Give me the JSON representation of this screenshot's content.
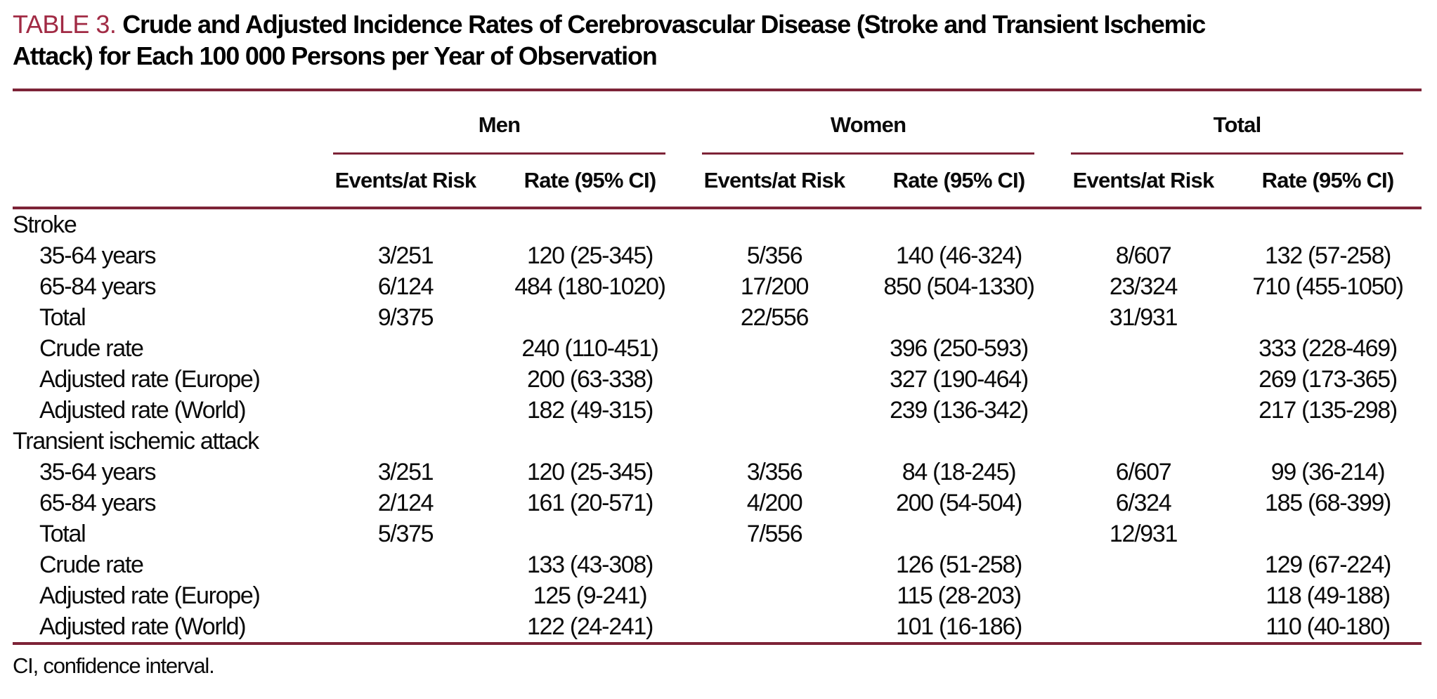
{
  "colors": {
    "accent_rule_color": "#7D2337",
    "table_label_color": "#A12A44"
  },
  "heading": {
    "table_label": "TABLE 3.",
    "title_line1": "Crude and Adjusted Incidence Rates of Cerebrovascular Disease (Stroke and Transient Ischemic",
    "title_line2": "Attack) for Each 100 000 Persons per Year of Observation"
  },
  "table": {
    "groups": [
      {
        "label": "Men"
      },
      {
        "label": "Women"
      },
      {
        "label": "Total"
      }
    ],
    "sub_headers": [
      "Events/at Risk",
      "Rate (95% CI)",
      "Events/at Risk",
      "Rate (95% CI)",
      "Events/at Risk",
      "Rate (95% CI)"
    ],
    "rows": [
      {
        "label": "Stroke",
        "type": "section",
        "cells": [
          "",
          "",
          "",
          "",
          "",
          ""
        ]
      },
      {
        "label": "35-64 years",
        "type": "data",
        "cells": [
          "3/251",
          "120 (25-345)",
          "5/356",
          "140 (46-324)",
          "8/607",
          "132 (57-258)"
        ]
      },
      {
        "label": "65-84 years",
        "type": "data",
        "cells": [
          "6/124",
          "484 (180-1020)",
          "17/200",
          "850 (504-1330)",
          "23/324",
          "710 (455-1050)"
        ]
      },
      {
        "label": "Total",
        "type": "data",
        "cells": [
          "9/375",
          "",
          "22/556",
          "",
          "31/931",
          ""
        ]
      },
      {
        "label": "Crude rate",
        "type": "data",
        "cells": [
          "",
          "240 (110-451)",
          "",
          "396 (250-593)",
          "",
          "333 (228-469)"
        ]
      },
      {
        "label": "Adjusted rate (Europe)",
        "type": "data",
        "cells": [
          "",
          "200 (63-338)",
          "",
          "327 (190-464)",
          "",
          "269 (173-365)"
        ]
      },
      {
        "label": "Adjusted rate (World)",
        "type": "data",
        "cells": [
          "",
          "182 (49-315)",
          "",
          "239 (136-342)",
          "",
          "217 (135-298)"
        ]
      },
      {
        "label": "Transient ischemic attack",
        "type": "section",
        "cells": [
          "",
          "",
          "",
          "",
          "",
          ""
        ]
      },
      {
        "label": "35-64 years",
        "type": "data",
        "cells": [
          "3/251",
          "120 (25-345)",
          "3/356",
          "84 (18-245)",
          "6/607",
          "99 (36-214)"
        ]
      },
      {
        "label": "65-84 years",
        "type": "data",
        "cells": [
          "2/124",
          "161 (20-571)",
          "4/200",
          "200 (54-504)",
          "6/324",
          "185 (68-399)"
        ]
      },
      {
        "label": "Total",
        "type": "data",
        "cells": [
          "5/375",
          "",
          "7/556",
          "",
          "12/931",
          ""
        ]
      },
      {
        "label": "Crude rate",
        "type": "data",
        "cells": [
          "",
          "133 (43-308)",
          "",
          "126 (51-258)",
          "",
          "129 (67-224)"
        ]
      },
      {
        "label": "Adjusted rate (Europe)",
        "type": "data",
        "cells": [
          "",
          "125 (9-241)",
          "",
          "115 (28-203)",
          "",
          "118 (49-188)"
        ]
      },
      {
        "label": "Adjusted rate (World)",
        "type": "data",
        "cells": [
          "",
          "122 (24-241)",
          "",
          "101 (16-186)",
          "",
          "110 (40-180)"
        ]
      }
    ]
  },
  "footnote": "CI, confidence interval."
}
